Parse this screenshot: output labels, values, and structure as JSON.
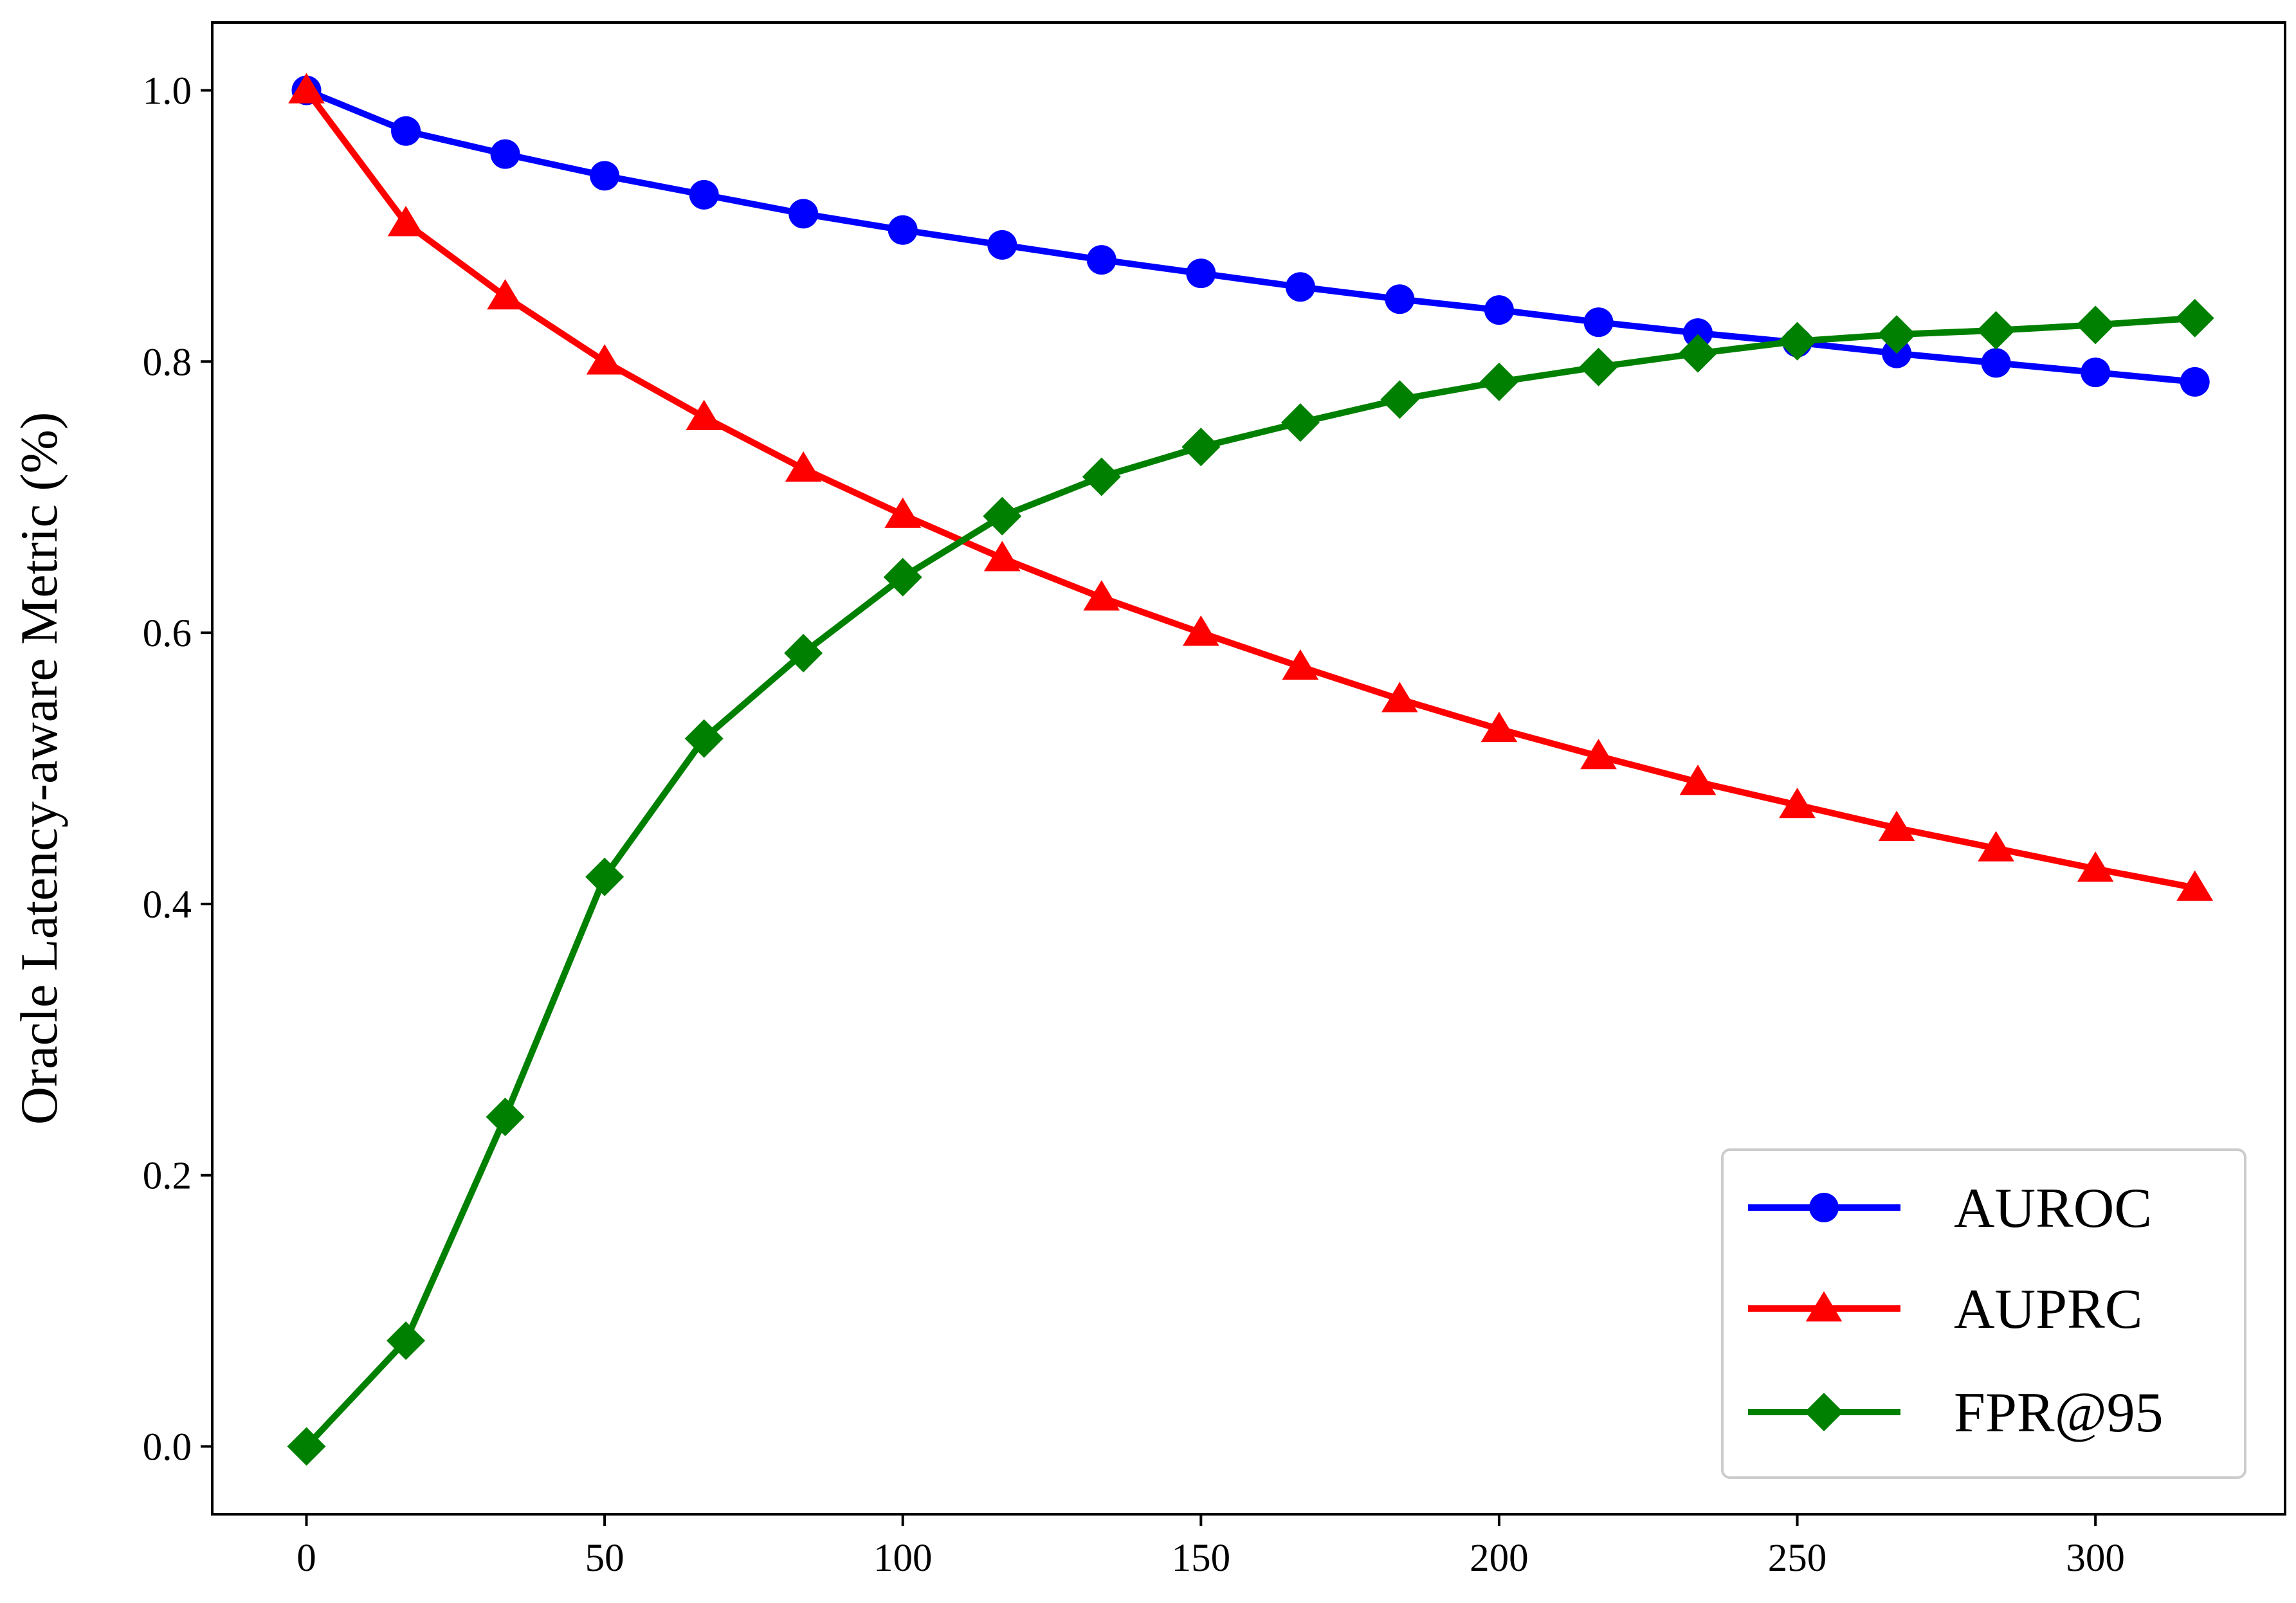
{
  "chart_data": {
    "type": "line",
    "title": "",
    "xlabel": "",
    "ylabel": "Oracle Latency-aware Metric (%)",
    "xlim": [
      -15.8,
      331.8
    ],
    "ylim": [
      -0.05,
      1.05
    ],
    "xticks": [
      0,
      50,
      100,
      150,
      200,
      250,
      300
    ],
    "yticks": [
      0.0,
      0.2,
      0.4,
      0.6,
      0.8,
      1.0
    ],
    "xtick_labels": [
      "0",
      "50",
      "100",
      "150",
      "200",
      "250",
      "300"
    ],
    "ytick_labels": [
      "0.0",
      "0.2",
      "0.4",
      "0.6",
      "0.8",
      "1.0"
    ],
    "grid": false,
    "legend_position": "lower-right",
    "x": [
      0,
      16.67,
      33.33,
      50,
      66.67,
      83.33,
      100,
      116.67,
      133.33,
      150,
      166.67,
      183.33,
      200,
      216.67,
      233.33,
      250,
      266.67,
      283.33,
      300,
      316.67
    ],
    "series": [
      {
        "name": "AUROC",
        "color": "#0000ff",
        "marker": "circle",
        "values": [
          1.0,
          0.97,
          0.953,
          0.937,
          0.923,
          0.909,
          0.897,
          0.886,
          0.875,
          0.865,
          0.855,
          0.846,
          0.838,
          0.829,
          0.821,
          0.814,
          0.806,
          0.799,
          0.792,
          0.785
        ]
      },
      {
        "name": "AUPRC",
        "color": "#ff0000",
        "marker": "triangle",
        "values": [
          1.0,
          0.902,
          0.848,
          0.8,
          0.759,
          0.721,
          0.687,
          0.655,
          0.626,
          0.6,
          0.575,
          0.551,
          0.529,
          0.509,
          0.49,
          0.473,
          0.456,
          0.441,
          0.426,
          0.412
        ]
      },
      {
        "name": "FPR@95",
        "color": "#008000",
        "marker": "diamond",
        "values": [
          0.0,
          0.078,
          0.243,
          0.42,
          0.522,
          0.585,
          0.641,
          0.686,
          0.715,
          0.737,
          0.755,
          0.772,
          0.785,
          0.796,
          0.806,
          0.815,
          0.82,
          0.823,
          0.827,
          0.832
        ]
      }
    ]
  }
}
